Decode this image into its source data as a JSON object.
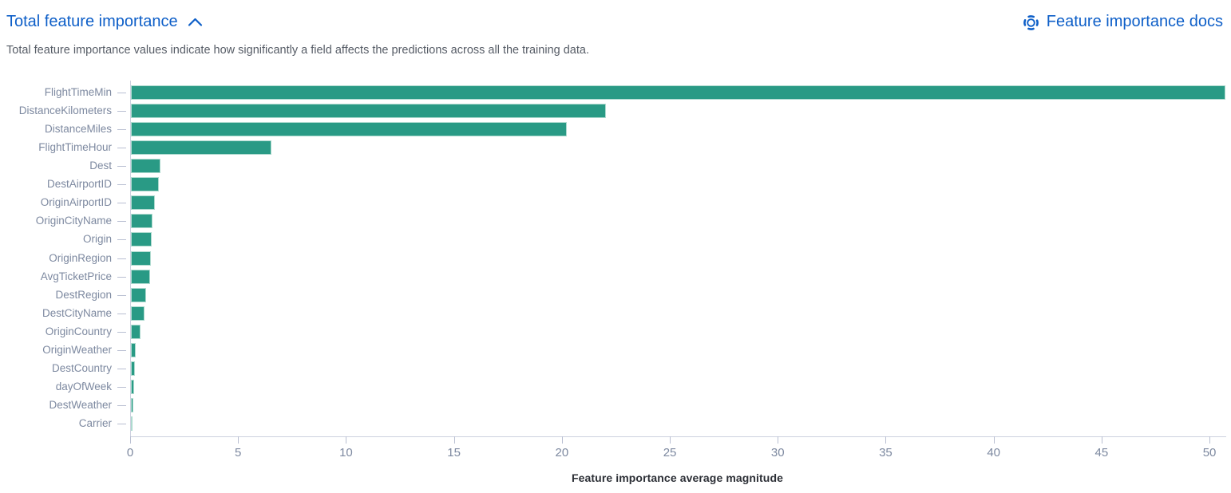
{
  "header": {
    "title": "Total feature importance",
    "docs_link_label": "Feature importance docs",
    "description": "Total feature importance values indicate how significantly a field affects the predictions across all the training data."
  },
  "colors": {
    "accent_blue": "#0e5fc8",
    "bar_teal": "#299a85",
    "axis_line": "#ccd1df",
    "tick_mark": "#b9bfd2",
    "axis_label_text": "#7d89a0",
    "description_text": "#565c66",
    "axis_title_text": "#2c2f36"
  },
  "icons": {
    "collapse": "chevron-up-icon",
    "docs": "help-lifebuoy-icon"
  },
  "chart_data": {
    "type": "bar",
    "orientation": "horizontal",
    "title": "",
    "xlabel": "Feature importance average magnitude",
    "ylabel": "",
    "grid": false,
    "xlim": [
      0,
      50.7
    ],
    "xticks": [
      0,
      5,
      10,
      15,
      20,
      25,
      30,
      35,
      40,
      45,
      50
    ],
    "bar_color": "#299a85",
    "categories": [
      "FlightTimeMin",
      "DistanceKilometers",
      "DistanceMiles",
      "FlightTimeHour",
      "Dest",
      "DestAirportID",
      "OriginAirportID",
      "OriginCityName",
      "Origin",
      "OriginRegion",
      "AvgTicketPrice",
      "DestRegion",
      "DestCityName",
      "OriginCountry",
      "OriginWeather",
      "DestCountry",
      "dayOfWeek",
      "DestWeather",
      "Carrier"
    ],
    "values": [
      50.7,
      22.0,
      20.2,
      6.5,
      1.35,
      1.3,
      1.1,
      1.0,
      0.97,
      0.93,
      0.9,
      0.72,
      0.62,
      0.45,
      0.22,
      0.18,
      0.16,
      0.12,
      0.05
    ]
  }
}
